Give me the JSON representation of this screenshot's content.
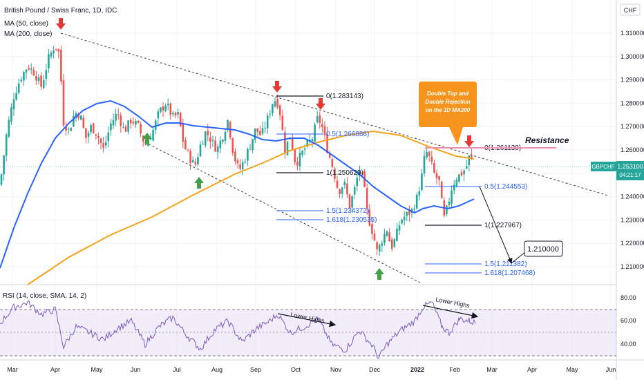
{
  "header": {
    "title": "British Pound / Swiss Franc, 1D, IDC",
    "ma50_label": "MA (50, close)",
    "ma200_label": "MA (200, close)",
    "currency_badge": "CHF"
  },
  "price_badge": {
    "symbol": "GBPCHF",
    "price": "1.253100",
    "countdown": "04:21:17"
  },
  "rsi_label": "RSI (14, close, SMA, 14, 2)",
  "annotations": {
    "callout": [
      "Double Top and",
      "Double Rejection",
      "on the 1D MA200"
    ],
    "resistance": "Resistance",
    "target": "1.210000",
    "lower_highs_1": "Lower Highs",
    "lower_highs_2": "Lower Highs"
  },
  "fib_labels": [
    "0(1.283143)",
    "0.5(1.266886)",
    "1(1.250629)",
    "1.5(1.234372)",
    "1.618(1.230535)",
    "0(1.261138)",
    "0.5(1.244553)",
    "1(1.227967)",
    "1.5(1.211382)",
    "1.618(1.207468)"
  ],
  "colors": {
    "up": "#26a69a",
    "down": "#ef5350",
    "ma50": "#2962ff",
    "ma200": "#f7a21b",
    "rsi": "#7e57c2",
    "fib_blue": "#2962ff",
    "arrow_red": "#e53935",
    "arrow_green": "#43a047",
    "callout": "#f7941d"
  },
  "chart_data": {
    "type": "candlestick",
    "title": "British Pound / Swiss Franc, 1D, IDC",
    "x_ticks": [
      "Mar",
      "Apr",
      "May",
      "Jun",
      "Jul",
      "Aug",
      "Sep",
      "Oct",
      "Nov",
      "Dec",
      "2022",
      "Feb",
      "Mar",
      "Apr",
      "May",
      "Jun"
    ],
    "y_ticks": [
      "1.310000",
      "1.300000",
      "1.290000",
      "1.280000",
      "1.270000",
      "1.260000",
      "1.250000",
      "1.240000",
      "1.230000",
      "1.220000",
      "1.210000"
    ],
    "ylim": [
      1.205,
      1.318
    ],
    "series": [
      {
        "name": "MA (50, close)",
        "color": "#2962ff"
      },
      {
        "name": "MA (200, close)",
        "color": "#f7a21b"
      }
    ],
    "last_price": 1.2531,
    "rsi": {
      "y_ticks": [
        "80.00",
        "60.00",
        "40.00"
      ],
      "ylim": [
        28,
        90
      ],
      "bands": [
        70,
        50,
        30
      ]
    }
  }
}
